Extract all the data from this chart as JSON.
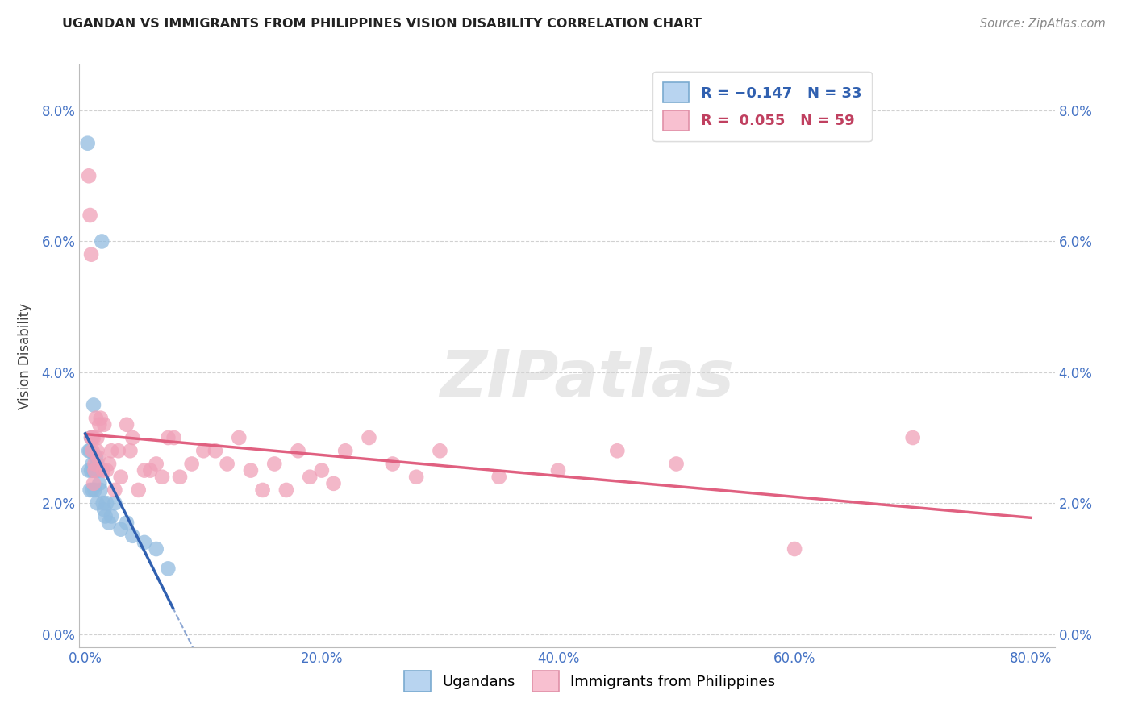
{
  "title": "UGANDAN VS IMMIGRANTS FROM PHILIPPINES VISION DISABILITY CORRELATION CHART",
  "source": "Source: ZipAtlas.com",
  "ylabel": "Vision Disability",
  "xlim": [
    0.0,
    0.8
  ],
  "ylim": [
    0.0,
    0.085
  ],
  "yticks": [
    0.0,
    0.02,
    0.04,
    0.06,
    0.08
  ],
  "xticks": [
    0.0,
    0.2,
    0.4,
    0.6,
    0.8
  ],
  "ugandan_color": "#92bce0",
  "philippines_color": "#f0a0b8",
  "ugandan_line_color": "#3060b0",
  "philippines_line_color": "#e06080",
  "watermark": "ZIPatlas",
  "ugandan_x": [
    0.002,
    0.003,
    0.003,
    0.004,
    0.004,
    0.005,
    0.005,
    0.006,
    0.006,
    0.007,
    0.007,
    0.008,
    0.008,
    0.009,
    0.01,
    0.01,
    0.011,
    0.012,
    0.013,
    0.014,
    0.015,
    0.016,
    0.017,
    0.018,
    0.02,
    0.022,
    0.025,
    0.03,
    0.035,
    0.04,
    0.05,
    0.06,
    0.07
  ],
  "ugandan_y": [
    0.075,
    0.028,
    0.025,
    0.028,
    0.022,
    0.03,
    0.025,
    0.026,
    0.022,
    0.035,
    0.025,
    0.025,
    0.022,
    0.027,
    0.026,
    0.02,
    0.025,
    0.023,
    0.022,
    0.06,
    0.02,
    0.019,
    0.018,
    0.02,
    0.017,
    0.018,
    0.02,
    0.016,
    0.017,
    0.015,
    0.014,
    0.013,
    0.01
  ],
  "philippines_x": [
    0.003,
    0.004,
    0.005,
    0.005,
    0.006,
    0.006,
    0.007,
    0.007,
    0.008,
    0.008,
    0.009,
    0.01,
    0.01,
    0.011,
    0.012,
    0.013,
    0.015,
    0.016,
    0.018,
    0.02,
    0.022,
    0.025,
    0.028,
    0.03,
    0.035,
    0.038,
    0.04,
    0.045,
    0.05,
    0.055,
    0.06,
    0.065,
    0.07,
    0.075,
    0.08,
    0.09,
    0.1,
    0.11,
    0.12,
    0.13,
    0.14,
    0.15,
    0.16,
    0.17,
    0.18,
    0.19,
    0.2,
    0.21,
    0.22,
    0.24,
    0.26,
    0.28,
    0.3,
    0.35,
    0.4,
    0.45,
    0.5,
    0.6,
    0.7
  ],
  "philippines_y": [
    0.07,
    0.064,
    0.058,
    0.03,
    0.03,
    0.028,
    0.03,
    0.023,
    0.026,
    0.025,
    0.033,
    0.03,
    0.028,
    0.027,
    0.032,
    0.033,
    0.025,
    0.032,
    0.025,
    0.026,
    0.028,
    0.022,
    0.028,
    0.024,
    0.032,
    0.028,
    0.03,
    0.022,
    0.025,
    0.025,
    0.026,
    0.024,
    0.03,
    0.03,
    0.024,
    0.026,
    0.028,
    0.028,
    0.026,
    0.03,
    0.025,
    0.022,
    0.026,
    0.022,
    0.028,
    0.024,
    0.025,
    0.023,
    0.028,
    0.03,
    0.026,
    0.024,
    0.028,
    0.024,
    0.025,
    0.028,
    0.026,
    0.013,
    0.03
  ]
}
